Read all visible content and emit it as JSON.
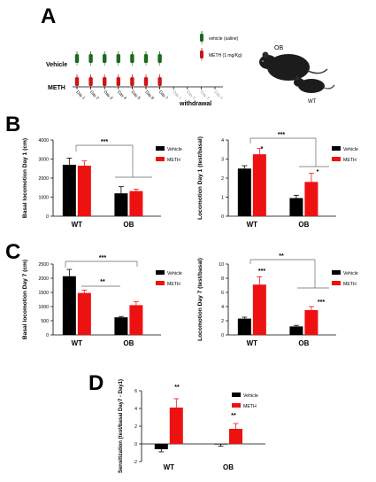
{
  "panel_labels": [
    "A",
    "B",
    "C",
    "D"
  ],
  "panelA": {
    "vehicle_label": "Vehicle",
    "meth_label": "METH",
    "legend_vehicle": "vehicle (saline)",
    "legend_meth": "METH (1 mg/Kg)",
    "days": [
      "Day 1",
      "Day 2",
      "Day 3",
      "Day 4",
      "Day 5",
      "Day 6",
      "Day 7",
      "Day 1",
      "Day 2",
      "Day 3",
      "Day 4"
    ],
    "withdrawal_label": "withdrawal",
    "mouse_ob_label": "OB",
    "mouse_wt_label": "WT",
    "colors": {
      "vehicle": "#1a6b1a",
      "meth": "#d01414"
    }
  },
  "legend": {
    "vehicle": "Vehicle",
    "meth": "METH"
  },
  "chart_data": [
    {
      "id": "B-left",
      "type": "bar",
      "categories": [
        "WT",
        "OB"
      ],
      "series": [
        {
          "name": "Vehicle",
          "values": [
            2700,
            1200
          ],
          "errors": [
            350,
            350
          ],
          "color": "#000000"
        },
        {
          "name": "METH",
          "values": [
            2650,
            1320
          ],
          "errors": [
            250,
            100
          ],
          "color": "#ee1111"
        }
      ],
      "ylabel": "Basal locomotion Day 1 (cm)",
      "ylim": [
        0,
        4000
      ],
      "yticks": [
        0,
        1000,
        2000,
        3000,
        4000
      ],
      "annotations": [
        "***"
      ]
    },
    {
      "id": "B-right",
      "type": "bar",
      "categories": [
        "WT",
        "OB"
      ],
      "series": [
        {
          "name": "Vehicle",
          "values": [
            2.5,
            0.95
          ],
          "errors": [
            0.15,
            0.15
          ],
          "color": "#000000"
        },
        {
          "name": "METH",
          "values": [
            3.25,
            1.8
          ],
          "errors": [
            0.3,
            0.45
          ],
          "color": "#ee1111"
        }
      ],
      "ylabel": "Locomotion Day 1 (test/basal)",
      "ylim": [
        0,
        4
      ],
      "yticks": [
        0,
        1,
        2,
        3,
        4
      ],
      "annotations": [
        "***",
        "*",
        "*"
      ]
    },
    {
      "id": "C-left",
      "type": "bar",
      "categories": [
        "WT",
        "OB"
      ],
      "series": [
        {
          "name": "Vehicle",
          "values": [
            2070,
            620
          ],
          "errors": [
            240,
            30
          ],
          "color": "#000000"
        },
        {
          "name": "METH",
          "values": [
            1480,
            1050
          ],
          "errors": [
            100,
            130
          ],
          "color": "#ee1111"
        }
      ],
      "ylabel": "Basal locomotion Day 7 (cm)",
      "ylim": [
        0,
        2500
      ],
      "yticks": [
        0,
        500,
        1000,
        1500,
        2000,
        2500
      ],
      "annotations": [
        "***",
        "**"
      ]
    },
    {
      "id": "C-right",
      "type": "bar",
      "categories": [
        "WT",
        "OB"
      ],
      "series": [
        {
          "name": "Vehicle",
          "values": [
            2.3,
            1.2
          ],
          "errors": [
            0.2,
            0.15
          ],
          "color": "#000000"
        },
        {
          "name": "METH",
          "values": [
            7.1,
            3.5
          ],
          "errors": [
            1.1,
            0.5
          ],
          "color": "#ee1111"
        }
      ],
      "ylabel": "Locomotion Day 7 (test/basal)",
      "ylim": [
        0,
        10
      ],
      "yticks": [
        0,
        2,
        4,
        6,
        8,
        10
      ],
      "annotations": [
        "**",
        "***",
        "***"
      ]
    },
    {
      "id": "D",
      "type": "bar",
      "categories": [
        "WT",
        "OB"
      ],
      "series": [
        {
          "name": "Vehicle",
          "values": [
            -0.6,
            -0.05
          ],
          "errors": [
            0.3,
            0.2
          ],
          "color": "#000000"
        },
        {
          "name": "METH",
          "values": [
            4.1,
            1.7
          ],
          "errors": [
            1.0,
            0.6
          ],
          "color": "#ee1111"
        }
      ],
      "ylabel": "Sensitization (test/basal Day7 - Day1)",
      "ylim": [
        -2,
        6
      ],
      "yticks": [
        -2,
        0,
        2,
        4,
        6
      ],
      "annotations": [
        "**",
        "**"
      ]
    }
  ]
}
